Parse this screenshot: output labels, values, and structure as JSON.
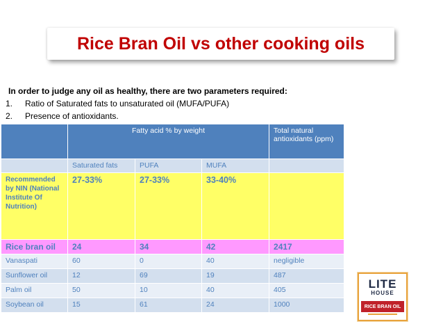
{
  "title": "Rice Bran Oil vs other cooking oils",
  "intro": {
    "lead": "In order to judge any oil as healthy, there are two parameters required:",
    "items": [
      {
        "num": "1.",
        "text": "Ratio of Saturated fats to unsaturated oil (MUFA/PUFA)"
      },
      {
        "num": "2.",
        "text": "Presence of antioxidants."
      }
    ]
  },
  "table": {
    "group_header": "Fatty acid % by weight",
    "antioxidant_header": "Total natural antioxidants (ppm)",
    "subheaders": [
      "Saturated fats",
      "PUFA",
      "MUFA"
    ],
    "recommended": {
      "label": "Recommended by NIN (National Institute Of Nutrition)",
      "values": [
        "27-33%",
        "27-33%",
        "33-40%",
        ""
      ]
    },
    "rows": [
      {
        "name": "Rice bran oil",
        "values": [
          "24",
          "34",
          "42",
          "2417"
        ]
      },
      {
        "name": "Vanaspati",
        "values": [
          "60",
          "0",
          "40",
          "negligible"
        ]
      },
      {
        "name": "Sunflower oil",
        "values": [
          "12",
          "69",
          "19",
          "487"
        ]
      },
      {
        "name": "Palm oil",
        "values": [
          "50",
          "10",
          "40",
          "405"
        ]
      },
      {
        "name": "Soybean oil",
        "values": [
          "15",
          "61",
          "24",
          "1000"
        ]
      }
    ]
  },
  "logo": {
    "line1": "LITE",
    "line2": "HOUSE",
    "line3": "RICE BRAN OIL"
  },
  "colors": {
    "title": "#c00000",
    "header": "#4f81bd",
    "recommended_bg": "#ffff66",
    "rice_bran_bg": "#ff99ff"
  }
}
